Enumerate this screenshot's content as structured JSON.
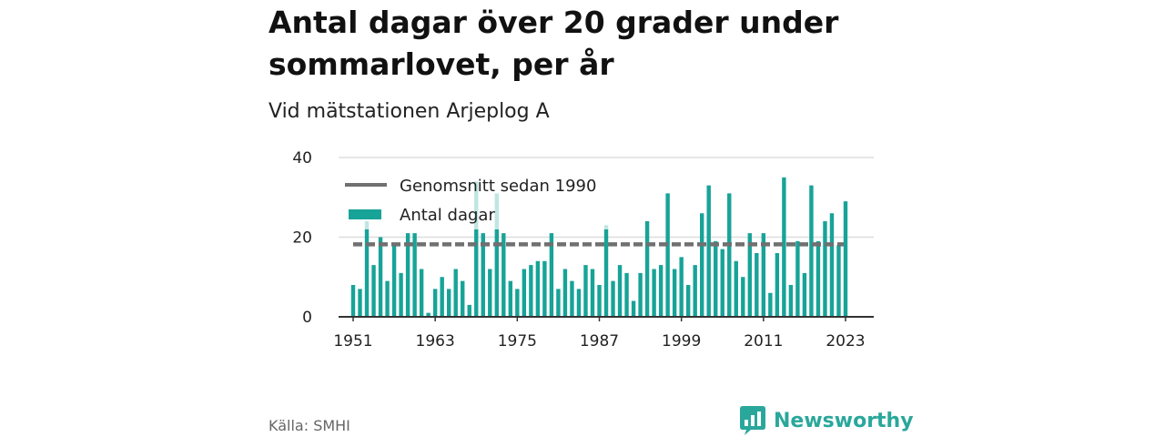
{
  "chart_data": {
    "type": "bar",
    "title": "Antal dagar över 20 grader under sommarlovet, per år",
    "subtitle": "Vid mätstationen Arjeplog A",
    "x": [
      1951,
      1952,
      1953,
      1954,
      1955,
      1956,
      1957,
      1958,
      1959,
      1960,
      1961,
      1962,
      1963,
      1964,
      1965,
      1966,
      1967,
      1968,
      1969,
      1970,
      1971,
      1972,
      1973,
      1974,
      1975,
      1976,
      1977,
      1978,
      1979,
      1980,
      1981,
      1982,
      1983,
      1984,
      1985,
      1986,
      1987,
      1988,
      1989,
      1990,
      1991,
      1992,
      1993,
      1994,
      1995,
      1996,
      1997,
      1998,
      1999,
      2000,
      2001,
      2002,
      2003,
      2004,
      2005,
      2006,
      2007,
      2008,
      2009,
      2010,
      2011,
      2012,
      2013,
      2014,
      2015,
      2016,
      2017,
      2018,
      2019,
      2020,
      2021,
      2022,
      2023
    ],
    "series": [
      {
        "name": "Antal dagar",
        "values": [
          8,
          7,
          24,
          13,
          20,
          9,
          18,
          11,
          21,
          21,
          12,
          1,
          7,
          10,
          7,
          12,
          9,
          3,
          34,
          21,
          12,
          31,
          21,
          9,
          7,
          12,
          13,
          14,
          14,
          21,
          7,
          12,
          9,
          7,
          13,
          12,
          8,
          23,
          9,
          13,
          11,
          4,
          11,
          24,
          12,
          13,
          31,
          12,
          15,
          8,
          13,
          26,
          33,
          19,
          17,
          31,
          14,
          10,
          21,
          16,
          21,
          6,
          16,
          35,
          8,
          19,
          11,
          33,
          19,
          24,
          26,
          18,
          29
        ]
      },
      {
        "name": "Genomsnitt sedan 1990",
        "value": 18.2,
        "from": 1951,
        "to": 2023
      }
    ],
    "xticks": [
      "1951",
      "1963",
      "1975",
      "1987",
      "1999",
      "2011",
      "2023"
    ],
    "yticks": [
      "0",
      "20",
      "40"
    ],
    "ylim": [
      0,
      40
    ],
    "grid": true,
    "legend_position": "top-left",
    "colors": {
      "bar": "#17a398",
      "average": "#707070",
      "bar_faded": "#bfe6e2",
      "grid": "#dddddd"
    }
  },
  "legend": {
    "average_label": "Genomsnitt sedan 1990",
    "bars_label": "Antal dagar"
  },
  "source": "Källa: SMHI",
  "brand": {
    "name": "Newsworthy",
    "icon": "bar-chart-speech-bubble-icon",
    "color": "#2aa79b"
  }
}
